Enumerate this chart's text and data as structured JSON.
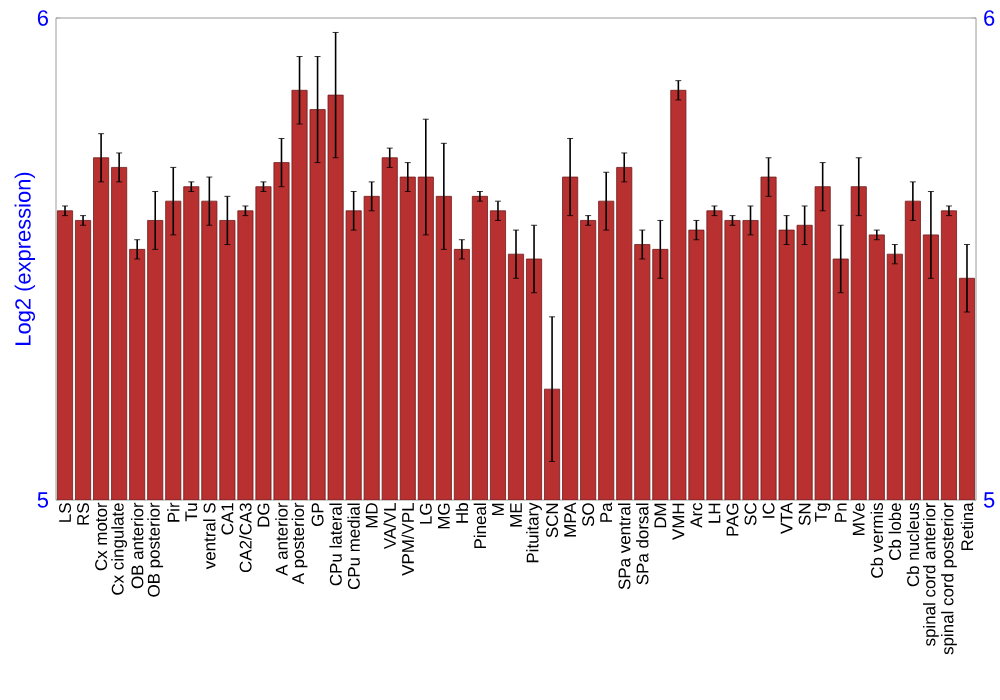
{
  "chart_data": {
    "type": "bar",
    "ylabel": "Log2 (expression)",
    "categories": [
      "LS",
      "RS",
      "Cx motor",
      "Cx cingulate",
      "OB anterior",
      "OB posterior",
      "Pir",
      "Tu",
      "ventral S",
      "CA1",
      "CA2/CA3",
      "DG",
      "A anterior",
      "A posterior",
      "GP",
      "CPu lateral",
      "CPu medial",
      "MD",
      "VA/VL",
      "VPM/VPL",
      "LG",
      "MG",
      "Hb",
      "Pineal",
      "M",
      "ME",
      "Pituitary",
      "SCN",
      "MPA",
      "SO",
      "Pa",
      "SPa ventral",
      "SPa dorsal",
      "DM",
      "VMH",
      "Arc",
      "LH",
      "PAG",
      "SC",
      "IC",
      "VTA",
      "SN",
      "Tg",
      "Pn",
      "MVe",
      "Cb vermis",
      "Cb lobe",
      "Cb nucleus",
      "spinal cord anterior",
      "spinal cord posterior",
      "Retina"
    ],
    "values": [
      5.6,
      5.58,
      5.71,
      5.69,
      5.52,
      5.58,
      5.62,
      5.65,
      5.62,
      5.58,
      5.6,
      5.65,
      5.7,
      5.85,
      5.81,
      5.84,
      5.6,
      5.63,
      5.71,
      5.67,
      5.67,
      5.63,
      5.52,
      5.63,
      5.6,
      5.51,
      5.5,
      5.23,
      5.67,
      5.58,
      5.62,
      5.69,
      5.53,
      5.52,
      5.85,
      5.56,
      5.6,
      5.58,
      5.58,
      5.67,
      5.56,
      5.57,
      5.65,
      5.5,
      5.65,
      5.55,
      5.51,
      5.62,
      5.55,
      5.6,
      5.46
    ],
    "errors": [
      0.01,
      0.01,
      0.05,
      0.03,
      0.02,
      0.06,
      0.07,
      0.01,
      0.05,
      0.05,
      0.01,
      0.01,
      0.05,
      0.07,
      0.11,
      0.13,
      0.04,
      0.03,
      0.02,
      0.03,
      0.12,
      0.11,
      0.02,
      0.01,
      0.02,
      0.05,
      0.07,
      0.15,
      0.08,
      0.01,
      0.06,
      0.03,
      0.03,
      0.06,
      0.02,
      0.02,
      0.01,
      0.01,
      0.03,
      0.04,
      0.03,
      0.04,
      0.05,
      0.07,
      0.06,
      0.01,
      0.02,
      0.04,
      0.09,
      0.01,
      0.07
    ],
    "color": "#b83030",
    "ylim": [
      5,
      6
    ],
    "yticks": [
      5,
      6
    ],
    "y2lim": [
      5,
      6
    ],
    "y2ticks": [
      5,
      6
    ]
  }
}
